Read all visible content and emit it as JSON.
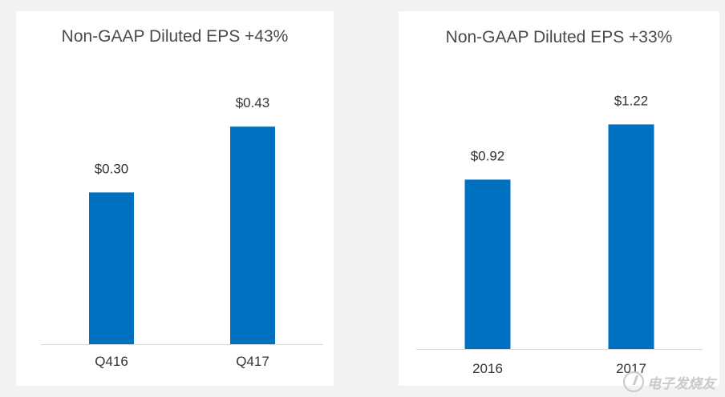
{
  "chart_data": [
    {
      "type": "bar",
      "title": "Non-GAAP Diluted EPS +43%",
      "categories": [
        "Q416",
        "Q417"
      ],
      "values": [
        0.3,
        0.43
      ],
      "data_labels": [
        "$0.30",
        "$0.43"
      ],
      "ylim": [
        0,
        0.5
      ],
      "grid": false,
      "color": "#0070c0"
    },
    {
      "type": "bar",
      "title": "Non-GAAP Diluted EPS +33%",
      "categories": [
        "2016",
        "2017"
      ],
      "values": [
        0.92,
        1.22
      ],
      "data_labels": [
        "$0.92",
        "$1.22"
      ],
      "ylim": [
        0,
        1.4
      ],
      "grid": false,
      "color": "#0070c0"
    }
  ],
  "watermark": {
    "text": "电子发烧友",
    "icon": "electronics-logo-icon"
  }
}
